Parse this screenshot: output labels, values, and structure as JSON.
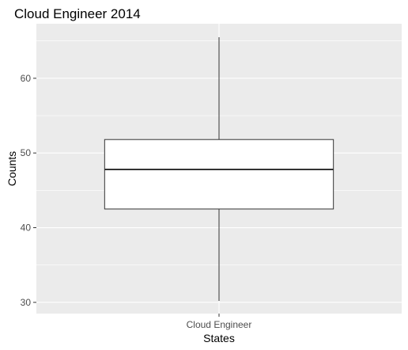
{
  "chart_data": {
    "type": "boxplot",
    "title": "Cloud Engineer 2014",
    "xlabel": "States",
    "ylabel": "Counts",
    "categories": [
      "Cloud Engineer"
    ],
    "boxes": [
      {
        "category": "Cloud Engineer",
        "min": 30.2,
        "q1": 42.5,
        "median": 47.8,
        "q3": 51.8,
        "max": 65.5
      }
    ],
    "ylim": [
      28.5,
      67.3
    ],
    "yticks": [
      30,
      40,
      50,
      60
    ],
    "ytick_labels": [
      "30",
      "40",
      "50",
      "60"
    ],
    "grid": true,
    "legend": "none",
    "colors": {
      "panel_background": "#ebebeb",
      "grid": "#ffffff",
      "box_fill": "#ffffff",
      "box_stroke": "#333333",
      "tick_mark": "#333333"
    }
  }
}
